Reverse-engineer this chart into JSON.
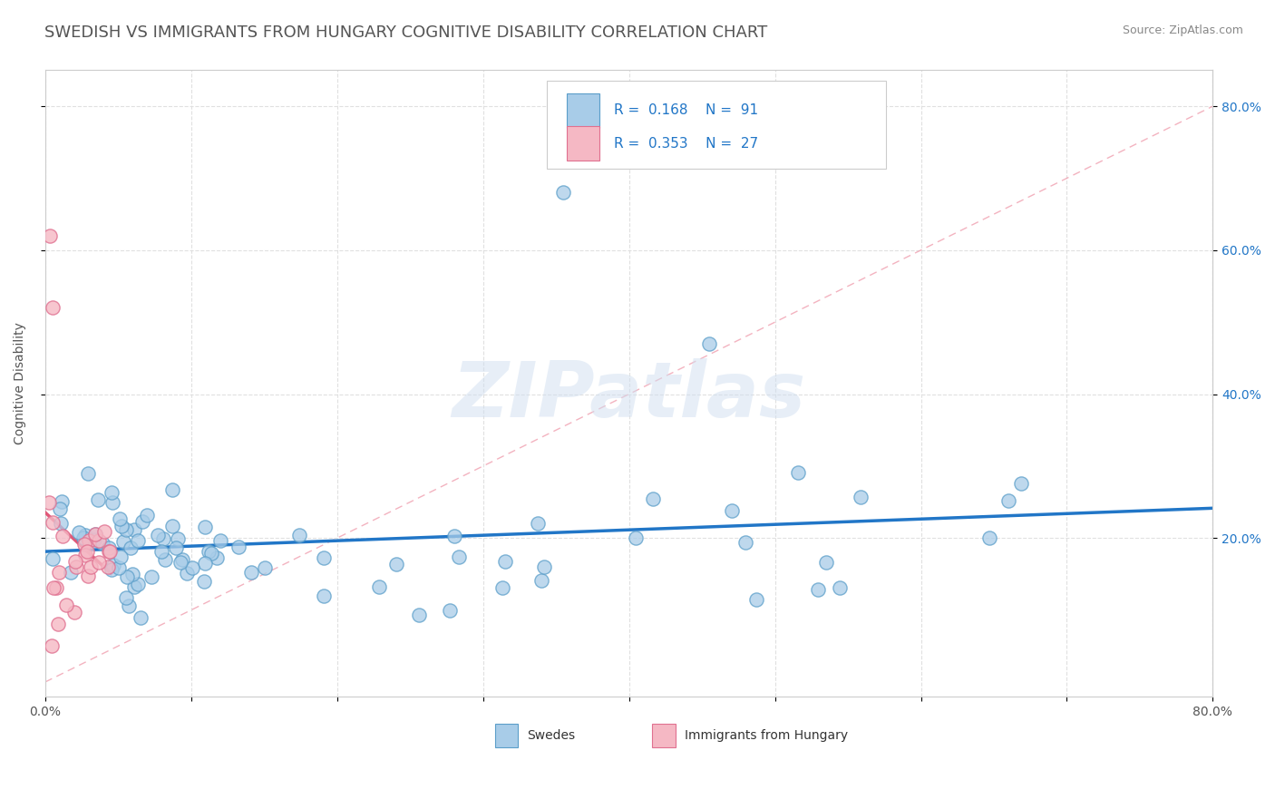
{
  "title": "SWEDISH VS IMMIGRANTS FROM HUNGARY COGNITIVE DISABILITY CORRELATION CHART",
  "source": "Source: ZipAtlas.com",
  "ylabel": "Cognitive Disability",
  "right_yticks": [
    "20.0%",
    "40.0%",
    "60.0%",
    "80.0%"
  ],
  "right_ytick_vals": [
    0.2,
    0.4,
    0.6,
    0.8
  ],
  "legend_swedes_R": "0.168",
  "legend_swedes_N": "91",
  "legend_hungary_R": "0.353",
  "legend_hungary_N": "27",
  "legend_label_swedes": "Swedes",
  "legend_label_hungary": "Immigrants from Hungary",
  "swedes_color": "#a8cce8",
  "swedes_edge_color": "#5b9ec9",
  "hungary_color": "#f5b8c4",
  "hungary_edge_color": "#e07090",
  "swedes_line_color": "#2176c7",
  "hungary_line_color": "#e05878",
  "ref_line_color": "#f0a0b0",
  "background_color": "#ffffff",
  "xlim": [
    0.0,
    0.8
  ],
  "ylim": [
    -0.02,
    0.85
  ],
  "title_fontsize": 13,
  "axis_fontsize": 10,
  "tick_fontsize": 10,
  "dot_size": 120,
  "watermark_color": "#d0dff0",
  "watermark_alpha": 0.5
}
